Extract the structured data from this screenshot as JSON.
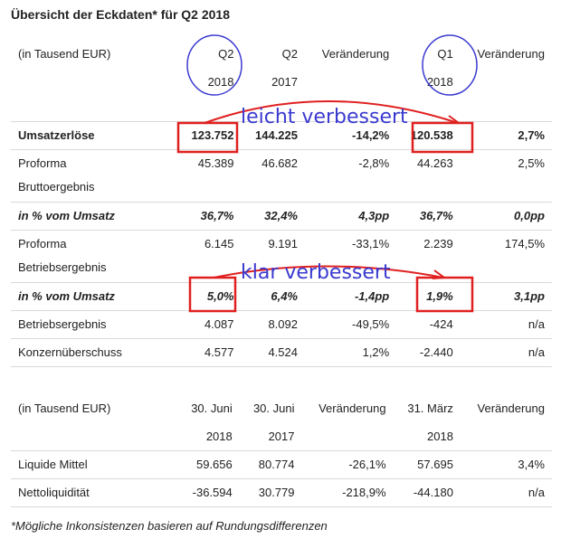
{
  "title": "Übersicht der Eckdaten* für Q2 2018",
  "table1": {
    "header": {
      "label": "(in Tausend EUR)",
      "cols_top": [
        "Q2",
        "Q2",
        "Veränderung",
        "Q1",
        "Veränderung"
      ],
      "cols_bottom": [
        "2018",
        "2017",
        "",
        "2018",
        ""
      ]
    },
    "rows": [
      {
        "label": "Umsatzerlöse",
        "label2": "",
        "v": [
          "123.752",
          "144.225",
          "-14,2%",
          "120.538",
          "2,7%"
        ]
      },
      {
        "label": "Proforma",
        "label2": "Bruttoergebnis",
        "v": [
          "45.389",
          "46.682",
          "-2,8%",
          "44.263",
          "2,5%"
        ]
      },
      {
        "label": "in % vom Umsatz",
        "label2": "",
        "v": [
          "36,7%",
          "32,4%",
          "4,3pp",
          "36,7%",
          "0,0pp"
        ]
      },
      {
        "label": "Proforma",
        "label2": "Betriebsergebnis",
        "v": [
          "6.145",
          "9.191",
          "-33,1%",
          "2.239",
          "174,5%"
        ]
      },
      {
        "label": "in % vom Umsatz",
        "label2": "",
        "v": [
          "5,0%",
          "6,4%",
          "-1,4pp",
          "1,9%",
          "3,1pp"
        ]
      },
      {
        "label": "Betriebsergebnis",
        "label2": "",
        "v": [
          "4.087",
          "8.092",
          "-49,5%",
          "-424",
          "n/a"
        ]
      },
      {
        "label": "Konzernüberschuss",
        "label2": "",
        "v": [
          "4.577",
          "4.524",
          "1,2%",
          "-2.440",
          "n/a"
        ]
      }
    ]
  },
  "table2": {
    "header": {
      "label": "(in Tausend EUR)",
      "cols_top": [
        "30. Juni",
        "30. Juni",
        "Veränderung",
        "31. März",
        "Veränderung"
      ],
      "cols_bottom": [
        "2018",
        "2017",
        "",
        "2018",
        ""
      ]
    },
    "rows": [
      {
        "label": "Liquide Mittel",
        "v": [
          "59.656",
          "80.774",
          "-26,1%",
          "57.695",
          "3,4%"
        ]
      },
      {
        "label": "Nettoliquidität",
        "v": [
          "-36.594",
          "30.779",
          "-218,9%",
          "-44.180",
          "n/a"
        ]
      }
    ]
  },
  "annotations": {
    "upper": "leicht verbessert",
    "lower": "klar verbessert",
    "circle_color": "#3a3ad0",
    "box_color": "#e02020"
  },
  "footnote": "*Mögliche Inkonsistenzen basieren auf Rundungsdifferenzen"
}
